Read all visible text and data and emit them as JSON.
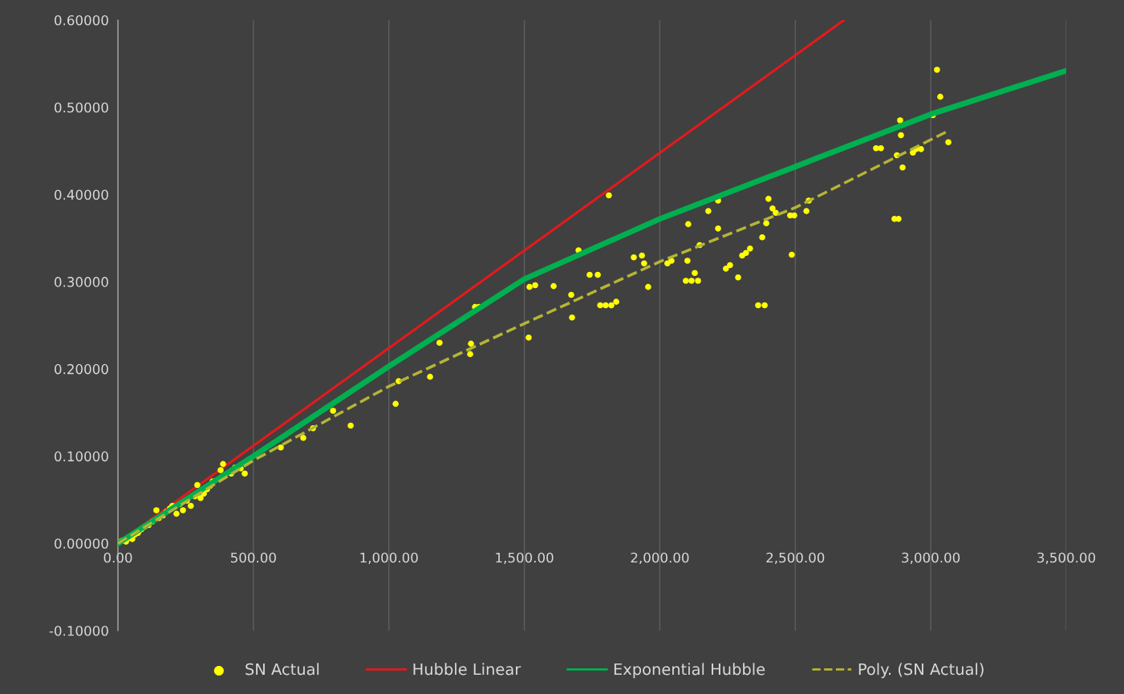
{
  "chart_data": {
    "type": "scatter",
    "xlim": [
      0,
      3500
    ],
    "ylim": [
      -0.1,
      0.6
    ],
    "xticks": [
      {
        "value": 0,
        "label": "0.00"
      },
      {
        "value": 500,
        "label": "500.00"
      },
      {
        "value": 1000,
        "label": "1,000.00"
      },
      {
        "value": 1500,
        "label": "1,500.00"
      },
      {
        "value": 2000,
        "label": "2,000.00"
      },
      {
        "value": 2500,
        "label": "2,500.00"
      },
      {
        "value": 3000,
        "label": "3,000.00"
      },
      {
        "value": 3500,
        "label": "3,500.00"
      }
    ],
    "yticks": [
      {
        "value": -0.1,
        "label": "-0.10000"
      },
      {
        "value": 0,
        "label": "0.00000"
      },
      {
        "value": 0.1,
        "label": "0.10000"
      },
      {
        "value": 0.2,
        "label": "0.20000"
      },
      {
        "value": 0.3,
        "label": "0.30000"
      },
      {
        "value": 0.4,
        "label": "0.40000"
      },
      {
        "value": 0.5,
        "label": "0.50000"
      },
      {
        "value": 0.6,
        "label": "0.60000"
      }
    ],
    "grid": "x",
    "legend": "bottom",
    "series": [
      {
        "name": "SN Actual",
        "marker": "circle",
        "color": "#ffff00",
        "x": [
          3,
          15,
          30,
          38,
          53,
          62,
          74,
          86,
          98,
          113,
          127,
          142,
          151,
          166,
          178,
          192,
          201,
          216,
          228,
          240,
          255,
          269,
          284,
          293,
          305,
          317,
          329,
          340,
          349,
          379,
          388,
          418,
          432,
          453,
          468,
          601,
          684,
          720,
          794,
          859,
          1025,
          1036,
          1152,
          1187,
          1300,
          1303,
          1318,
          1332,
          1516,
          1519,
          1540,
          1608,
          1676,
          1673,
          1700,
          1741,
          1771,
          1780,
          1800,
          1821,
          1812,
          1839,
          1904,
          1934,
          1942,
          1957,
          2028,
          2043,
          2102,
          2105,
          2096,
          2117,
          2141,
          2129,
          2147,
          2179,
          2215,
          2215,
          2244,
          2259,
          2289,
          2304,
          2318,
          2333,
          2363,
          2387,
          2378,
          2393,
          2401,
          2416,
          2428,
          2481,
          2496,
          2487,
          2541,
          2550,
          2798,
          2816,
          2866,
          2881,
          2875,
          2887,
          2890,
          2896,
          2934,
          2946,
          2964,
          3008,
          3023,
          3035,
          3065
        ],
        "values": [
          0.001,
          0.003,
          0.002,
          0.006,
          0.005,
          0.01,
          0.012,
          0.016,
          0.019,
          0.021,
          0.025,
          0.038,
          0.029,
          0.032,
          0.036,
          0.04,
          0.043,
          0.034,
          0.045,
          0.038,
          0.049,
          0.043,
          0.054,
          0.067,
          0.052,
          0.057,
          0.062,
          0.066,
          0.071,
          0.084,
          0.091,
          0.08,
          0.087,
          0.086,
          0.08,
          0.11,
          0.121,
          0.132,
          0.152,
          0.135,
          0.16,
          0.186,
          0.191,
          0.23,
          0.217,
          0.229,
          0.271,
          0.271,
          0.236,
          0.294,
          0.296,
          0.295,
          0.259,
          0.285,
          0.336,
          0.308,
          0.308,
          0.273,
          0.273,
          0.273,
          0.399,
          0.277,
          0.328,
          0.33,
          0.321,
          0.294,
          0.321,
          0.324,
          0.324,
          0.366,
          0.301,
          0.301,
          0.301,
          0.31,
          0.342,
          0.381,
          0.393,
          0.361,
          0.315,
          0.319,
          0.305,
          0.33,
          0.333,
          0.338,
          0.273,
          0.273,
          0.351,
          0.367,
          0.395,
          0.384,
          0.379,
          0.376,
          0.376,
          0.331,
          0.381,
          0.393,
          0.453,
          0.453,
          0.372,
          0.372,
          0.445,
          0.485,
          0.468,
          0.431,
          0.448,
          0.452,
          0.452,
          0.491,
          0.543,
          0.512,
          0.46
        ]
      },
      {
        "name": "Hubble Linear",
        "type": "line",
        "line_style": "solid",
        "color": "#e31a1c",
        "x": [
          0,
          2680
        ],
        "values": [
          0,
          0.6
        ]
      },
      {
        "name": "Exponential Hubble",
        "type": "line",
        "line_style": "solid",
        "color": "#00b050",
        "x": [
          0,
          500,
          1000,
          1500,
          2000,
          2500,
          3000,
          3500
        ],
        "values": [
          0,
          0.1,
          0.203,
          0.303,
          0.372,
          0.432,
          0.492,
          0.542
        ]
      },
      {
        "name": "Poly. (SN Actual)",
        "type": "line",
        "line_style": "dashed",
        "color": "#b5b536",
        "x": [
          0,
          500,
          1000,
          1500,
          2000,
          2500,
          3065
        ],
        "values": [
          0,
          0.095,
          0.18,
          0.252,
          0.323,
          0.385,
          0.473
        ]
      }
    ]
  }
}
